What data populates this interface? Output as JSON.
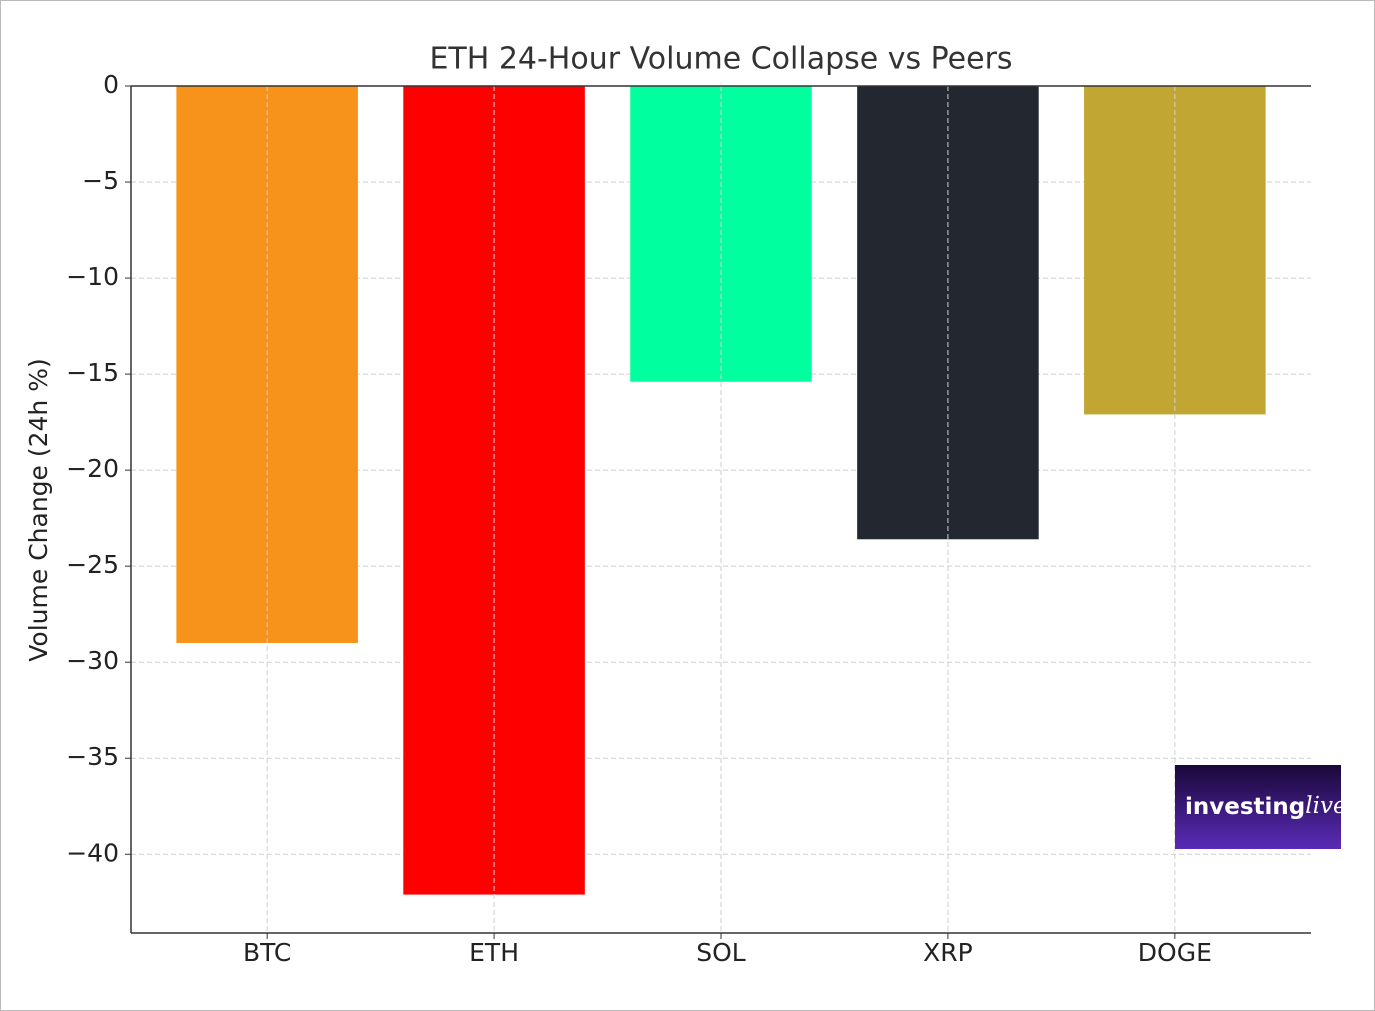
{
  "chart_data": {
    "type": "bar",
    "title": "ETH 24-Hour Volume Collapse vs Peers",
    "y_label": "Volume Change (24h %)",
    "categories": [
      "BTC",
      "ETH",
      "SOL",
      "XRP",
      "DOGE"
    ],
    "values": [
      -29.0,
      -42.1,
      -15.4,
      -23.6,
      -17.1
    ],
    "colors": [
      "#f7931a",
      "#ff0000",
      "#00ff9f",
      "#23272f",
      "#c2a633"
    ],
    "ylim": [
      -44.1,
      0
    ],
    "yticks": [
      0,
      {
        "value": -5,
        "label": "−5"
      },
      {
        "value": -10,
        "label": "−10"
      },
      {
        "value": -15,
        "label": "−15"
      },
      {
        "value": -20,
        "label": "−20"
      },
      {
        "value": -25,
        "label": "−25"
      },
      {
        "value": -30,
        "label": "−30"
      },
      {
        "value": -35,
        "label": "−35"
      },
      {
        "value": -40,
        "label": "−40"
      }
    ],
    "grid": true
  },
  "logo": {
    "brand": "investing",
    "suffix": "live"
  }
}
